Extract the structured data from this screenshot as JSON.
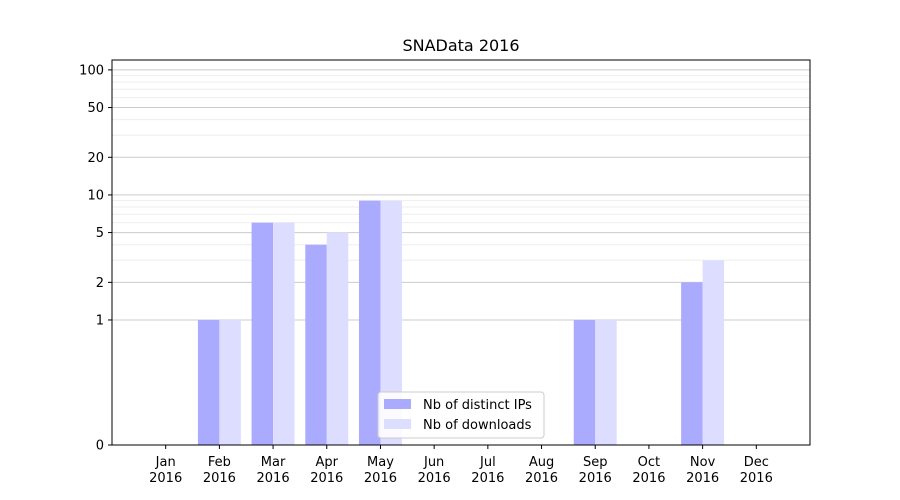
{
  "chart_data": {
    "type": "bar",
    "title": "SNAData 2016",
    "xlabel": "",
    "ylabel": "",
    "categories": [
      "Jan 2016",
      "Feb 2016",
      "Mar 2016",
      "Apr 2016",
      "May 2016",
      "Jun 2016",
      "Jul 2016",
      "Aug 2016",
      "Sep 2016",
      "Oct 2016",
      "Nov 2016",
      "Dec 2016"
    ],
    "series": [
      {
        "name": "Nb of distinct IPs",
        "color": "#aaaaff",
        "values": [
          0,
          1,
          6,
          4,
          9,
          0,
          0,
          0,
          1,
          0,
          2,
          0
        ]
      },
      {
        "name": "Nb of downloads",
        "color": "#ddddff",
        "values": [
          0,
          1,
          6,
          5,
          9,
          0,
          0,
          0,
          1,
          0,
          3,
          0
        ]
      }
    ],
    "yscale": "symlog",
    "ylim": [
      0,
      120
    ],
    "yticks": [
      0,
      1,
      2,
      5,
      10,
      20,
      50,
      100
    ],
    "grid": true,
    "legend_position": "lower-center"
  }
}
